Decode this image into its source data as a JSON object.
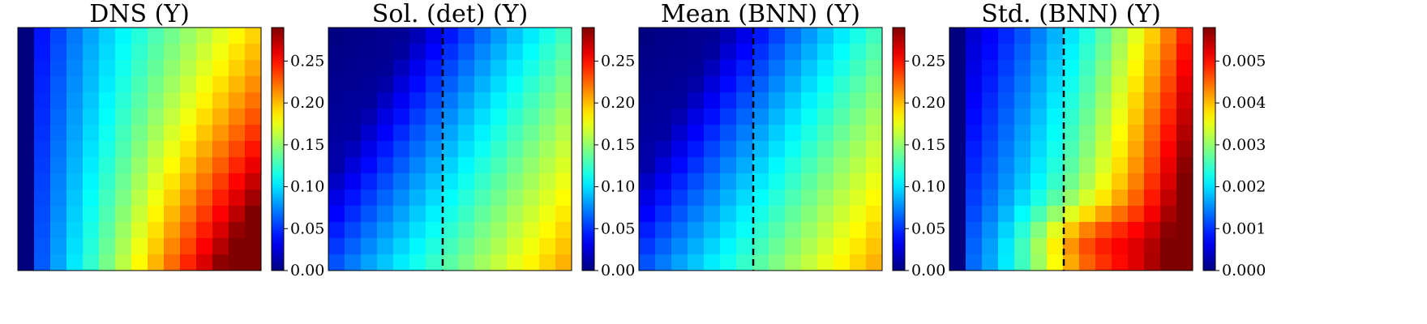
{
  "chart_data": [
    {
      "type": "heatmap",
      "title": "DNS (Y)",
      "colormap": "jet",
      "grid": "15x15",
      "colorbar": {
        "min": 0.0,
        "max": 0.29,
        "ticks": [
          "0.00",
          "0.05",
          "0.10",
          "0.15",
          "0.20",
          "0.25"
        ]
      },
      "dashed_line": false,
      "field": {
        "fn": "dns",
        "vmin": 0.0,
        "vmax": 0.29
      }
    },
    {
      "type": "heatmap",
      "title": "Sol. (det) (Y)",
      "colormap": "jet",
      "grid": "15x15",
      "colorbar": {
        "min": 0.0,
        "max": 0.29,
        "ticks": [
          "0.00",
          "0.05",
          "0.10",
          "0.15",
          "0.20",
          "0.25"
        ]
      },
      "dashed_line": true,
      "field": {
        "fn": "det",
        "vmin": 0.0,
        "vmax": 0.29
      }
    },
    {
      "type": "heatmap",
      "title": "Mean (BNN) (Y)",
      "colormap": "jet",
      "grid": "15x15",
      "colorbar": {
        "min": 0.0,
        "max": 0.29,
        "ticks": [
          "0.00",
          "0.05",
          "0.10",
          "0.15",
          "0.20",
          "0.25"
        ]
      },
      "dashed_line": true,
      "field": {
        "fn": "det",
        "vmin": 0.0,
        "vmax": 0.29
      }
    },
    {
      "type": "heatmap",
      "title": "Std. (BNN) (Y)",
      "colormap": "jet",
      "grid": "15x15",
      "colorbar": {
        "min": 0.0,
        "max": 0.0058,
        "ticks": [
          "0.000",
          "0.001",
          "0.002",
          "0.003",
          "0.004",
          "0.005"
        ]
      },
      "dashed_line": true,
      "field": {
        "fn": "std",
        "vmin": 0.0,
        "vmax": 0.0058
      }
    }
  ],
  "colors": {
    "dashed_line": "#000000",
    "frame": "#000000"
  }
}
